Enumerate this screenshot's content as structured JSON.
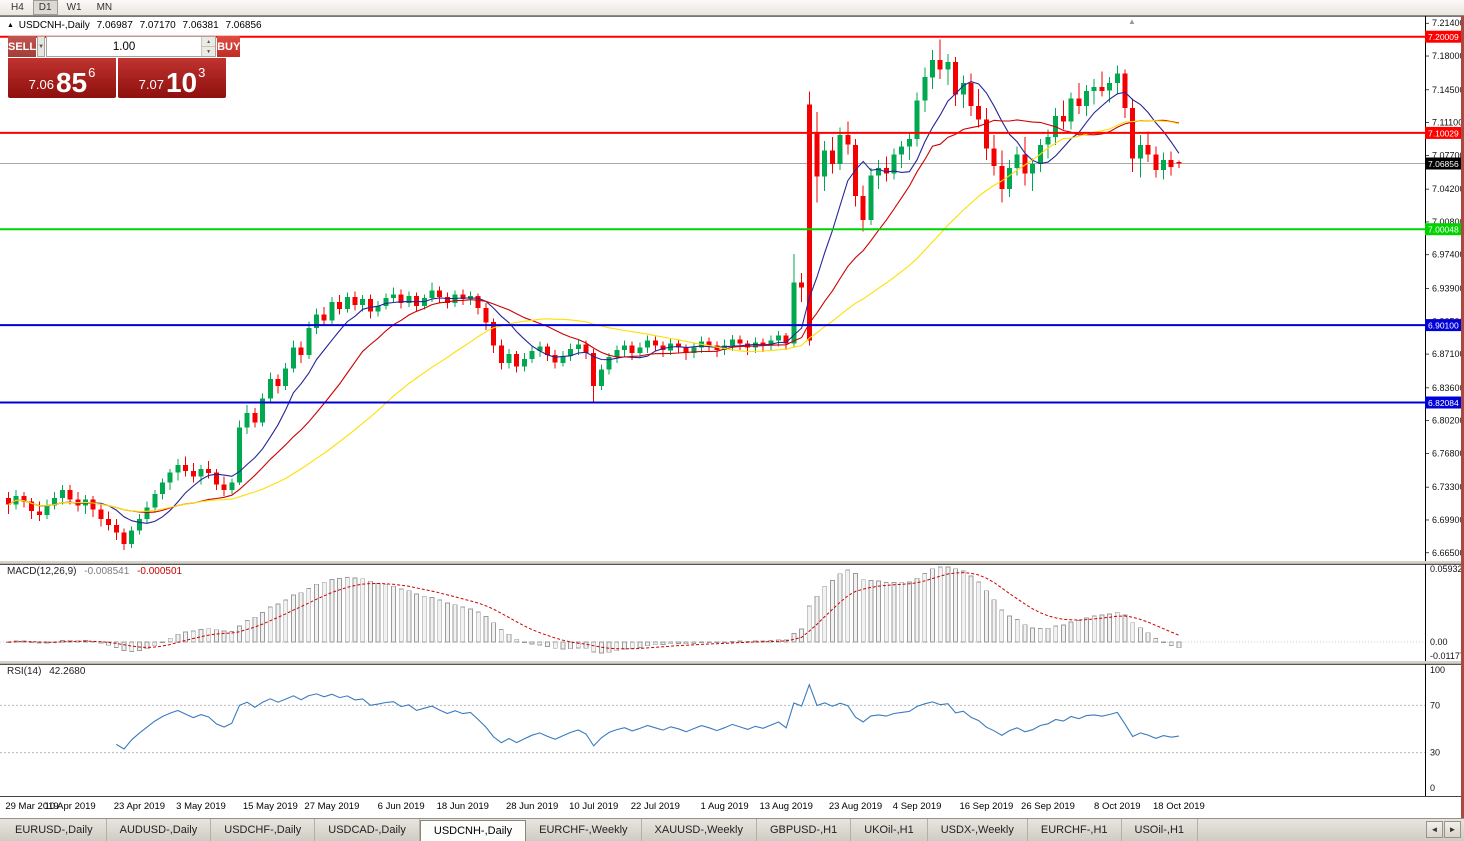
{
  "toolbar": {
    "buttons": [
      "H4",
      "D1",
      "W1",
      "MN"
    ],
    "active": "D1"
  },
  "icons": {
    "dropdown": "▼",
    "spin_up": "▲",
    "spin_down": "▼",
    "direction_up": "▲",
    "scroll_left": "◄",
    "scroll_right": "►",
    "shift_marker": "▲"
  },
  "header": {
    "direction_icon": "▲",
    "symbol": "USDCNH-,Daily",
    "open": "7.06987",
    "high": "7.07170",
    "low": "7.06381",
    "close": "7.06856"
  },
  "trade": {
    "sell_label": "SELL",
    "buy_label": "BUY",
    "volume": "1.00",
    "sell": {
      "prefix": "7.06",
      "big": "85",
      "sup": "6"
    },
    "buy": {
      "prefix": "7.07",
      "big": "10",
      "sup": "3"
    }
  },
  "colors": {
    "up": "#00a94f",
    "down": "#f40000",
    "ma_fast": "#242499",
    "ma_mid": "#cc0000",
    "ma_slow": "#ffdf00",
    "level_red": "#ff0000",
    "level_green": "#00d300",
    "level_blue": "#0000d8",
    "current_line": "#a8a8a8",
    "macd_bar_fill": "#f2f2f2",
    "macd_bar_stroke": "#9a9a9a",
    "macd_signal": "#cc0000",
    "rsi_line": "#3a7bbf",
    "badge_current": "#000000"
  },
  "macd": {
    "label": "MACD(12,26,9)",
    "value_main": "-0.008541",
    "value_signal": "-0.000501",
    "fast": 12,
    "slow": 26,
    "signal": 9,
    "y_ticks": [
      "0.05932",
      "0.00",
      "-0.01177"
    ]
  },
  "rsi": {
    "label": "RSI(14)",
    "value": "42.2680",
    "period": 14,
    "levels": [
      70,
      30
    ],
    "y_ticks": [
      "100",
      "70",
      "30",
      "0"
    ]
  },
  "tab_bar": {
    "active_index": 4,
    "tabs": [
      "EURUSD-,Daily",
      "AUDUSD-,Daily",
      "USDCHF-,Daily",
      "USDCAD-,Daily",
      "USDCNH-,Daily",
      "EURCHF-,Weekly",
      "XAUUSD-,Weekly",
      "GBPUSD-,H1",
      "UKOil-,H1",
      "USDX-,Weekly",
      "EURCHF-,H1",
      "USOil-,H1"
    ]
  },
  "chart_data": {
    "type": "candlestick",
    "symbol": "USDCNH",
    "timeframe": "Daily",
    "price_range": [
      6.6575,
      7.2215
    ],
    "y_ticks": [
      "7.21400",
      "7.18000",
      "7.14500",
      "7.11100",
      "7.07700",
      "7.04200",
      "7.00800",
      "6.97400",
      "6.93900",
      "6.90500",
      "6.87100",
      "6.83600",
      "6.80200",
      "6.76800",
      "6.73300",
      "6.69900",
      "6.66500"
    ],
    "hlines": [
      {
        "price": 7.20009,
        "label": "7.20009",
        "color": "#ff0000"
      },
      {
        "price": 7.10029,
        "label": "7.10029",
        "color": "#ff0000"
      },
      {
        "price": 7.00048,
        "label": "7.00048",
        "color": "#00d300"
      },
      {
        "price": 6.901,
        "label": "6.90100",
        "color": "#0000d8"
      },
      {
        "price": 6.82084,
        "label": "6.82084",
        "color": "#0000d8"
      }
    ],
    "current_price": {
      "value": 7.06856,
      "label": "7.06856"
    },
    "moving_averages": [
      {
        "period": 8,
        "color": "#242499"
      },
      {
        "period": 17,
        "color": "#cc0000"
      },
      {
        "period": 34,
        "color": "#ffdf00"
      }
    ],
    "date_labels": [
      {
        "label": "29 Mar 2019",
        "i": 0
      },
      {
        "label": "10 Apr 2019",
        "i": 8
      },
      {
        "label": "23 Apr 2019",
        "i": 17
      },
      {
        "label": "3 May 2019",
        "i": 25
      },
      {
        "label": "15 May 2019",
        "i": 34
      },
      {
        "label": "27 May 2019",
        "i": 42
      },
      {
        "label": "6 Jun 2019",
        "i": 51
      },
      {
        "label": "18 Jun 2019",
        "i": 59
      },
      {
        "label": "28 Jun 2019",
        "i": 68
      },
      {
        "label": "10 Jul 2019",
        "i": 76
      },
      {
        "label": "22 Jul 2019",
        "i": 84
      },
      {
        "label": "1 Aug 2019",
        "i": 93
      },
      {
        "label": "13 Aug 2019",
        "i": 101
      },
      {
        "label": "23 Aug 2019",
        "i": 110
      },
      {
        "label": "4 Sep 2019",
        "i": 118
      },
      {
        "label": "16 Sep 2019",
        "i": 127
      },
      {
        "label": "26 Sep 2019",
        "i": 135
      },
      {
        "label": "8 Oct 2019",
        "i": 144
      },
      {
        "label": "18 Oct 2019",
        "i": 152
      }
    ],
    "candles": [
      [
        6.722,
        6.728,
        6.705,
        6.715
      ],
      [
        6.715,
        6.73,
        6.71,
        6.724
      ],
      [
        6.724,
        6.728,
        6.712,
        6.718
      ],
      [
        6.718,
        6.722,
        6.7,
        6.708
      ],
      [
        6.708,
        6.718,
        6.698,
        6.704
      ],
      [
        6.704,
        6.72,
        6.7,
        6.714
      ],
      [
        6.714,
        6.728,
        6.71,
        6.722
      ],
      [
        6.722,
        6.735,
        6.715,
        6.73
      ],
      [
        6.73,
        6.735,
        6.715,
        6.72
      ],
      [
        6.72,
        6.728,
        6.708,
        6.714
      ],
      [
        6.714,
        6.725,
        6.705,
        6.72
      ],
      [
        6.72,
        6.724,
        6.702,
        6.71
      ],
      [
        6.71,
        6.715,
        6.692,
        6.7
      ],
      [
        6.7,
        6.708,
        6.688,
        6.694
      ],
      [
        6.694,
        6.7,
        6.678,
        6.686
      ],
      [
        6.686,
        6.69,
        6.668,
        6.674
      ],
      [
        6.674,
        6.692,
        6.67,
        6.688
      ],
      [
        6.688,
        6.705,
        6.684,
        6.7
      ],
      [
        6.7,
        6.718,
        6.696,
        6.712
      ],
      [
        6.712,
        6.73,
        6.708,
        6.726
      ],
      [
        6.726,
        6.742,
        6.72,
        6.738
      ],
      [
        6.738,
        6.752,
        6.73,
        6.748
      ],
      [
        6.748,
        6.762,
        6.74,
        6.756
      ],
      [
        6.756,
        6.765,
        6.744,
        6.75
      ],
      [
        6.75,
        6.758,
        6.738,
        6.744
      ],
      [
        6.744,
        6.756,
        6.736,
        6.752
      ],
      [
        6.752,
        6.76,
        6.742,
        6.748
      ],
      [
        6.748,
        6.752,
        6.73,
        6.736
      ],
      [
        6.736,
        6.744,
        6.724,
        6.73
      ],
      [
        6.73,
        6.742,
        6.726,
        6.738
      ],
      [
        6.738,
        6.802,
        6.735,
        6.795
      ],
      [
        6.795,
        6.818,
        6.788,
        6.81
      ],
      [
        6.81,
        6.815,
        6.795,
        6.8
      ],
      [
        6.8,
        6.83,
        6.796,
        6.825
      ],
      [
        6.825,
        6.852,
        6.82,
        6.845
      ],
      [
        6.845,
        6.85,
        6.83,
        6.838
      ],
      [
        6.838,
        6.862,
        6.834,
        6.856
      ],
      [
        6.856,
        6.885,
        6.852,
        6.878
      ],
      [
        6.878,
        6.884,
        6.862,
        6.87
      ],
      [
        6.87,
        6.905,
        6.866,
        6.898
      ],
      [
        6.898,
        6.918,
        6.892,
        6.912
      ],
      [
        6.912,
        6.92,
        6.9,
        6.906
      ],
      [
        6.906,
        6.93,
        6.902,
        6.925
      ],
      [
        6.925,
        6.932,
        6.912,
        6.918
      ],
      [
        6.918,
        6.935,
        6.914,
        6.93
      ],
      [
        6.93,
        6.936,
        6.916,
        6.922
      ],
      [
        6.922,
        6.932,
        6.915,
        6.928
      ],
      [
        6.928,
        6.933,
        6.908,
        6.915
      ],
      [
        6.915,
        6.926,
        6.91,
        6.921
      ],
      [
        6.921,
        6.934,
        6.917,
        6.929
      ],
      [
        6.929,
        6.94,
        6.924,
        6.933
      ],
      [
        6.933,
        6.938,
        6.918,
        6.924
      ],
      [
        6.924,
        6.936,
        6.92,
        6.931
      ],
      [
        6.931,
        6.935,
        6.915,
        6.921
      ],
      [
        6.921,
        6.933,
        6.917,
        6.929
      ],
      [
        6.929,
        6.945,
        6.925,
        6.937
      ],
      [
        6.937,
        6.941,
        6.924,
        6.93
      ],
      [
        6.93,
        6.935,
        6.918,
        6.924
      ],
      [
        6.924,
        6.937,
        6.92,
        6.933
      ],
      [
        6.933,
        6.938,
        6.922,
        6.928
      ],
      [
        6.928,
        6.936,
        6.922,
        6.931
      ],
      [
        6.931,
        6.934,
        6.912,
        6.919
      ],
      [
        6.919,
        6.924,
        6.896,
        6.904
      ],
      [
        6.904,
        6.908,
        6.872,
        6.88
      ],
      [
        6.88,
        6.886,
        6.855,
        6.862
      ],
      [
        6.862,
        6.876,
        6.856,
        6.871
      ],
      [
        6.871,
        6.874,
        6.852,
        6.858
      ],
      [
        6.858,
        6.872,
        6.853,
        6.866
      ],
      [
        6.866,
        6.88,
        6.862,
        6.874
      ],
      [
        6.874,
        6.884,
        6.868,
        6.879
      ],
      [
        6.879,
        6.882,
        6.864,
        6.87
      ],
      [
        6.87,
        6.875,
        6.856,
        6.862
      ],
      [
        6.862,
        6.874,
        6.858,
        6.869
      ],
      [
        6.869,
        6.882,
        6.864,
        6.876
      ],
      [
        6.876,
        6.886,
        6.87,
        6.881
      ],
      [
        6.881,
        6.885,
        6.866,
        6.872
      ],
      [
        6.872,
        6.876,
        6.821,
        6.838
      ],
      [
        6.838,
        6.86,
        6.834,
        6.855
      ],
      [
        6.855,
        6.872,
        6.85,
        6.868
      ],
      [
        6.868,
        6.88,
        6.862,
        6.875
      ],
      [
        6.875,
        6.885,
        6.868,
        6.88
      ],
      [
        6.88,
        6.884,
        6.865,
        6.872
      ],
      [
        6.872,
        6.883,
        6.867,
        6.878
      ],
      [
        6.878,
        6.89,
        6.872,
        6.885
      ],
      [
        6.885,
        6.889,
        6.874,
        6.88
      ],
      [
        6.88,
        6.884,
        6.868,
        6.875
      ],
      [
        6.875,
        6.887,
        6.87,
        6.882
      ],
      [
        6.882,
        6.886,
        6.872,
        6.878
      ],
      [
        6.878,
        6.881,
        6.865,
        6.872
      ],
      [
        6.872,
        6.883,
        6.867,
        6.878
      ],
      [
        6.878,
        6.889,
        6.872,
        6.884
      ],
      [
        6.884,
        6.888,
        6.873,
        6.88
      ],
      [
        6.88,
        6.884,
        6.868,
        6.875
      ],
      [
        6.875,
        6.886,
        6.87,
        6.88
      ],
      [
        6.88,
        6.891,
        6.874,
        6.886
      ],
      [
        6.886,
        6.89,
        6.875,
        6.882
      ],
      [
        6.882,
        6.885,
        6.87,
        6.878
      ],
      [
        6.878,
        6.888,
        6.872,
        6.883
      ],
      [
        6.883,
        6.887,
        6.873,
        6.88
      ],
      [
        6.88,
        6.89,
        6.875,
        6.885
      ],
      [
        6.885,
        6.895,
        6.879,
        6.89
      ],
      [
        6.89,
        6.893,
        6.875,
        6.882
      ],
      [
        6.882,
        6.975,
        6.878,
        6.945
      ],
      [
        6.945,
        6.955,
        6.925,
        6.94
      ],
      [
        6.885,
        7.143,
        6.88,
        7.13,
        "r"
      ],
      [
        7.1,
        7.122,
        7.028,
        7.055
      ],
      [
        7.055,
        7.092,
        7.04,
        7.082
      ],
      [
        7.082,
        7.096,
        7.058,
        7.068
      ],
      [
        7.068,
        7.106,
        7.062,
        7.098
      ],
      [
        7.098,
        7.112,
        7.078,
        7.088
      ],
      [
        7.088,
        7.094,
        7.024,
        7.035
      ],
      [
        7.035,
        7.046,
        6.998,
        7.01
      ],
      [
        7.01,
        7.064,
        7.005,
        7.056
      ],
      [
        7.056,
        7.072,
        7.042,
        7.064
      ],
      [
        7.064,
        7.076,
        7.05,
        7.058
      ],
      [
        7.058,
        7.084,
        7.052,
        7.078
      ],
      [
        7.078,
        7.092,
        7.064,
        7.086
      ],
      [
        7.086,
        7.1,
        7.072,
        7.094
      ],
      [
        7.094,
        7.142,
        7.086,
        7.134
      ],
      [
        7.134,
        7.168,
        7.122,
        7.158
      ],
      [
        7.158,
        7.186,
        7.146,
        7.176
      ],
      [
        7.176,
        7.197,
        7.156,
        7.166
      ],
      [
        7.166,
        7.182,
        7.15,
        7.174
      ],
      [
        7.174,
        7.179,
        7.128,
        7.14
      ],
      [
        7.14,
        7.16,
        7.126,
        7.152
      ],
      [
        7.152,
        7.162,
        7.118,
        7.128
      ],
      [
        7.128,
        7.146,
        7.106,
        7.114
      ],
      [
        7.114,
        7.126,
        7.072,
        7.084
      ],
      [
        7.084,
        7.098,
        7.056,
        7.066
      ],
      [
        7.066,
        7.082,
        7.028,
        7.042
      ],
      [
        7.042,
        7.072,
        7.034,
        7.064
      ],
      [
        7.064,
        7.086,
        7.056,
        7.078
      ],
      [
        7.078,
        7.096,
        7.046,
        7.058
      ],
      [
        7.058,
        7.074,
        7.04,
        7.068
      ],
      [
        7.068,
        7.094,
        7.06,
        7.088
      ],
      [
        7.088,
        7.104,
        7.074,
        7.096
      ],
      [
        7.096,
        7.126,
        7.088,
        7.118
      ],
      [
        7.118,
        7.134,
        7.104,
        7.112
      ],
      [
        7.112,
        7.142,
        7.104,
        7.136
      ],
      [
        7.136,
        7.152,
        7.12,
        7.128
      ],
      [
        7.128,
        7.15,
        7.118,
        7.144
      ],
      [
        7.144,
        7.156,
        7.13,
        7.148
      ],
      [
        7.148,
        7.164,
        7.138,
        7.144
      ],
      [
        7.144,
        7.158,
        7.132,
        7.152
      ],
      [
        7.152,
        7.17,
        7.14,
        7.162
      ],
      [
        7.162,
        7.166,
        7.116,
        7.126
      ],
      [
        7.126,
        7.136,
        7.06,
        7.074
      ],
      [
        7.074,
        7.098,
        7.054,
        7.088
      ],
      [
        7.088,
        7.102,
        7.07,
        7.078
      ],
      [
        7.078,
        7.086,
        7.054,
        7.062
      ],
      [
        7.062,
        7.08,
        7.052,
        7.072
      ],
      [
        7.072,
        7.081,
        7.056,
        7.065
      ],
      [
        7.0699,
        7.0717,
        7.0638,
        7.0686
      ]
    ]
  }
}
